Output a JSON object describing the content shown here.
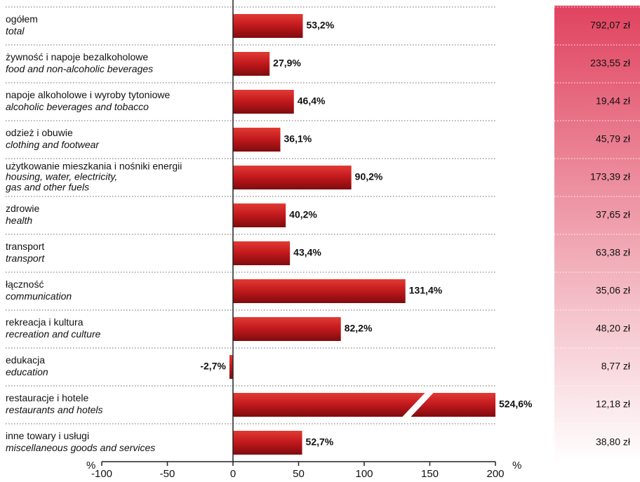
{
  "chart_data": {
    "type": "bar",
    "categories": [
      "ogółem",
      "żywność i napoje bezalkoholowe",
      "napoje alkoholowe i wyroby tytoniowe",
      "odzież i obuwie",
      "użytkowanie mieszkania i nośniki energii",
      "zdrowie",
      "transport",
      "łączność",
      "rekreacja i kultura",
      "edukacja",
      "restauracje i hotele",
      "inne towary i usługi"
    ],
    "categories_en": [
      [
        "total"
      ],
      [
        "food and non-alcoholic beverages"
      ],
      [
        "alcoholic beverages and tobacco"
      ],
      [
        "clothing and footwear"
      ],
      [
        "housing, water, electricity,",
        "gas and other fuels"
      ],
      [
        "health"
      ],
      [
        "transport"
      ],
      [
        "communication"
      ],
      [
        "recreation and culture"
      ],
      [
        "education"
      ],
      [
        "restaurants and hotels"
      ],
      [
        "miscellaneous goods and services"
      ]
    ],
    "values": [
      53.2,
      27.9,
      46.4,
      36.1,
      90.2,
      40.2,
      43.4,
      131.4,
      82.2,
      -2.7,
      524.6,
      52.7
    ],
    "value_labels": [
      "53,2%",
      "27,9%",
      "46,4%",
      "36,1%",
      "90,2%",
      "40,2%",
      "43,4%",
      "131,4%",
      "82,2%",
      "-2,7%",
      "524,6%",
      "52,7%"
    ],
    "amounts": [
      "792,07 zł",
      "233,55 zł",
      "19,44 zł",
      "45,79 zł",
      "173,39 zł",
      "37,65 zł",
      "63,38 zł",
      "35,06 zł",
      "48,20 zł",
      "8,77 zł",
      "12,18 zł",
      "38,80 zł"
    ],
    "color": "#c0181c",
    "xlim": [
      -100,
      200
    ],
    "xticks": [
      -100,
      -50,
      0,
      50,
      100,
      150,
      200
    ],
    "x_unit_labels": [
      "%",
      "%"
    ]
  }
}
